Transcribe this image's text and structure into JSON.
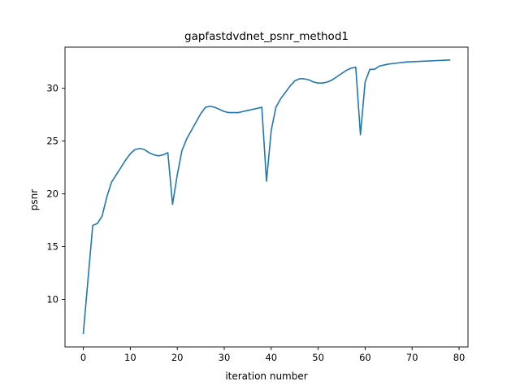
{
  "chart_data": {
    "type": "line",
    "title": "gapfastdvdnet_psnr_method1",
    "xlabel": "iteration number",
    "ylabel": "psnr",
    "xlim": [
      -3.9,
      81.9
    ],
    "ylim": [
      5.5,
      33.9
    ],
    "xticks": [
      0,
      10,
      20,
      30,
      40,
      50,
      60,
      70,
      80
    ],
    "yticks": [
      10,
      15,
      20,
      25,
      30
    ],
    "grid": false,
    "series": [
      {
        "color": "#1f77b4",
        "x": [
          0,
          1,
          2,
          3,
          4,
          5,
          6,
          7,
          8,
          9,
          10,
          11,
          12,
          13,
          14,
          15,
          16,
          17,
          18,
          19,
          20,
          21,
          22,
          23,
          24,
          25,
          26,
          27,
          28,
          29,
          30,
          31,
          32,
          33,
          34,
          35,
          36,
          37,
          38,
          39,
          40,
          41,
          42,
          43,
          44,
          45,
          46,
          47,
          48,
          49,
          50,
          51,
          52,
          53,
          54,
          55,
          56,
          57,
          58,
          59,
          60,
          61,
          62,
          63,
          64,
          65,
          66,
          67,
          68,
          69,
          70,
          71,
          72,
          73,
          74,
          75,
          76,
          77,
          78
        ],
        "y": [
          6.8,
          11.9,
          17.0,
          17.2,
          17.9,
          19.7,
          21.1,
          21.8,
          22.5,
          23.2,
          23.8,
          24.2,
          24.3,
          24.2,
          23.9,
          23.7,
          23.6,
          23.7,
          23.9,
          19.0,
          21.8,
          24.1,
          25.2,
          26.0,
          26.8,
          27.6,
          28.2,
          28.3,
          28.2,
          28.0,
          27.8,
          27.7,
          27.7,
          27.7,
          27.8,
          27.9,
          28.0,
          28.1,
          28.2,
          21.2,
          26.0,
          28.2,
          29.0,
          29.6,
          30.2,
          30.7,
          30.9,
          30.9,
          30.8,
          30.6,
          30.5,
          30.5,
          30.6,
          30.8,
          31.1,
          31.4,
          31.7,
          31.9,
          32.0,
          25.6,
          30.6,
          31.8,
          31.8,
          32.1,
          32.2,
          32.3,
          32.35,
          32.4,
          32.45,
          32.5,
          32.52,
          32.54,
          32.56,
          32.58,
          32.6,
          32.62,
          32.64,
          32.66,
          32.68
        ]
      }
    ]
  }
}
